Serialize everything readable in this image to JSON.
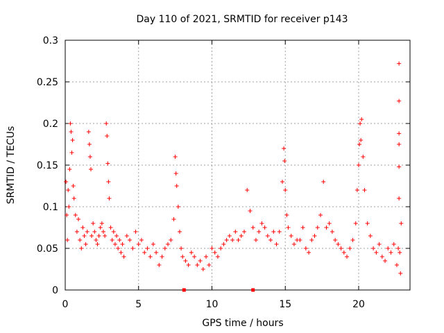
{
  "chart_data": {
    "type": "scatter",
    "title": "Day 110 of 2021, SRMTID for receiver p143",
    "xlabel": "GPS time / hours",
    "ylabel": "SRMTID / TECUs",
    "xlim": [
      0,
      23.5
    ],
    "ylim": [
      0,
      0.3
    ],
    "xticks": [
      0,
      5,
      10,
      15,
      20
    ],
    "xtick_labels": [
      "0",
      "5",
      "10",
      "15",
      "20"
    ],
    "yticks": [
      0,
      0.05,
      0.1,
      0.15,
      0.2,
      0.25,
      0.3
    ],
    "ytick_labels": [
      "0",
      "0.05",
      "0.1",
      "0.15",
      "0.2",
      "0.25",
      "0.3"
    ],
    "grid": true,
    "marker": "+",
    "color": "#ff0000",
    "series": [
      {
        "name": "SRMTID",
        "points": [
          [
            0.05,
            0.13
          ],
          [
            0.1,
            0.09
          ],
          [
            0.15,
            0.06
          ],
          [
            0.2,
            0.12
          ],
          [
            0.25,
            0.1
          ],
          [
            0.3,
            0.145
          ],
          [
            0.35,
            0.2
          ],
          [
            0.4,
            0.19
          ],
          [
            0.45,
            0.165
          ],
          [
            0.5,
            0.18
          ],
          [
            0.55,
            0.125
          ],
          [
            0.6,
            0.11
          ],
          [
            0.7,
            0.09
          ],
          [
            0.8,
            0.07
          ],
          [
            0.9,
            0.085
          ],
          [
            1.0,
            0.06
          ],
          [
            1.1,
            0.05
          ],
          [
            1.2,
            0.075
          ],
          [
            1.3,
            0.065
          ],
          [
            1.4,
            0.055
          ],
          [
            1.5,
            0.07
          ],
          [
            1.6,
            0.19
          ],
          [
            1.65,
            0.175
          ],
          [
            1.7,
            0.16
          ],
          [
            1.75,
            0.145
          ],
          [
            1.8,
            0.065
          ],
          [
            1.9,
            0.08
          ],
          [
            2.0,
            0.07
          ],
          [
            2.1,
            0.06
          ],
          [
            2.2,
            0.055
          ],
          [
            2.3,
            0.065
          ],
          [
            2.4,
            0.075
          ],
          [
            2.5,
            0.08
          ],
          [
            2.6,
            0.07
          ],
          [
            2.7,
            0.065
          ],
          [
            2.8,
            0.2
          ],
          [
            2.85,
            0.185
          ],
          [
            2.9,
            0.152
          ],
          [
            2.95,
            0.13
          ],
          [
            3.0,
            0.11
          ],
          [
            3.1,
            0.075
          ],
          [
            3.2,
            0.06
          ],
          [
            3.3,
            0.07
          ],
          [
            3.4,
            0.055
          ],
          [
            3.5,
            0.065
          ],
          [
            3.6,
            0.05
          ],
          [
            3.7,
            0.06
          ],
          [
            3.8,
            0.045
          ],
          [
            3.9,
            0.055
          ],
          [
            4.0,
            0.04
          ],
          [
            4.2,
            0.065
          ],
          [
            4.4,
            0.06
          ],
          [
            4.6,
            0.05
          ],
          [
            4.8,
            0.07
          ],
          [
            5.0,
            0.055
          ],
          [
            5.2,
            0.06
          ],
          [
            5.4,
            0.045
          ],
          [
            5.6,
            0.05
          ],
          [
            5.8,
            0.04
          ],
          [
            6.0,
            0.055
          ],
          [
            6.2,
            0.045
          ],
          [
            6.4,
            0.03
          ],
          [
            6.6,
            0.04
          ],
          [
            6.8,
            0.05
          ],
          [
            7.0,
            0.055
          ],
          [
            7.2,
            0.06
          ],
          [
            7.4,
            0.085
          ],
          [
            7.5,
            0.16
          ],
          [
            7.55,
            0.14
          ],
          [
            7.6,
            0.125
          ],
          [
            7.7,
            0.1
          ],
          [
            7.8,
            0.07
          ],
          [
            7.9,
            0.05
          ],
          [
            8.0,
            0.04
          ],
          [
            8.2,
            0.035
          ],
          [
            8.4,
            0.03
          ],
          [
            8.6,
            0.045
          ],
          [
            8.8,
            0.04
          ],
          [
            9.0,
            0.03
          ],
          [
            9.2,
            0.035
          ],
          [
            9.4,
            0.025
          ],
          [
            9.6,
            0.04
          ],
          [
            9.8,
            0.03
          ],
          [
            10.0,
            0.05
          ],
          [
            10.2,
            0.045
          ],
          [
            10.4,
            0.04
          ],
          [
            10.6,
            0.05
          ],
          [
            10.8,
            0.055
          ],
          [
            11.0,
            0.06
          ],
          [
            11.2,
            0.065
          ],
          [
            11.4,
            0.06
          ],
          [
            11.6,
            0.07
          ],
          [
            11.8,
            0.06
          ],
          [
            12.0,
            0.065
          ],
          [
            12.2,
            0.07
          ],
          [
            12.4,
            0.12
          ],
          [
            12.6,
            0.095
          ],
          [
            12.8,
            0.075
          ],
          [
            13.0,
            0.06
          ],
          [
            13.2,
            0.07
          ],
          [
            13.4,
            0.08
          ],
          [
            13.6,
            0.075
          ],
          [
            13.8,
            0.065
          ],
          [
            14.0,
            0.06
          ],
          [
            14.2,
            0.07
          ],
          [
            14.4,
            0.055
          ],
          [
            14.6,
            0.07
          ],
          [
            14.8,
            0.13
          ],
          [
            14.9,
            0.17
          ],
          [
            14.95,
            0.155
          ],
          [
            15.0,
            0.12
          ],
          [
            15.1,
            0.09
          ],
          [
            15.2,
            0.075
          ],
          [
            15.4,
            0.065
          ],
          [
            15.6,
            0.055
          ],
          [
            15.8,
            0.06
          ],
          [
            16.0,
            0.06
          ],
          [
            16.2,
            0.075
          ],
          [
            16.4,
            0.05
          ],
          [
            16.6,
            0.045
          ],
          [
            16.8,
            0.06
          ],
          [
            17.0,
            0.065
          ],
          [
            17.2,
            0.075
          ],
          [
            17.4,
            0.09
          ],
          [
            17.6,
            0.13
          ],
          [
            17.8,
            0.075
          ],
          [
            18.0,
            0.08
          ],
          [
            18.2,
            0.07
          ],
          [
            18.4,
            0.06
          ],
          [
            18.6,
            0.055
          ],
          [
            18.8,
            0.05
          ],
          [
            19.0,
            0.045
          ],
          [
            19.2,
            0.04
          ],
          [
            19.4,
            0.05
          ],
          [
            19.6,
            0.06
          ],
          [
            19.8,
            0.08
          ],
          [
            19.9,
            0.12
          ],
          [
            20.0,
            0.15
          ],
          [
            20.05,
            0.175
          ],
          [
            20.1,
            0.2
          ],
          [
            20.15,
            0.18
          ],
          [
            20.2,
            0.205
          ],
          [
            20.3,
            0.16
          ],
          [
            20.4,
            0.12
          ],
          [
            20.6,
            0.08
          ],
          [
            20.8,
            0.065
          ],
          [
            21.0,
            0.05
          ],
          [
            21.2,
            0.045
          ],
          [
            21.4,
            0.055
          ],
          [
            21.6,
            0.04
          ],
          [
            21.8,
            0.035
          ],
          [
            22.0,
            0.05
          ],
          [
            22.2,
            0.045
          ],
          [
            22.4,
            0.055
          ],
          [
            22.6,
            0.03
          ],
          [
            22.7,
            0.05
          ],
          [
            22.75,
            0.272
          ],
          [
            22.75,
            0.227
          ],
          [
            22.75,
            0.188
          ],
          [
            22.75,
            0.175
          ],
          [
            22.75,
            0.148
          ],
          [
            22.75,
            0.11
          ],
          [
            22.8,
            0.045
          ],
          [
            22.85,
            0.02
          ],
          [
            22.9,
            0.08
          ]
        ]
      }
    ],
    "bottom_markers_x": [
      8.1,
      12.8
    ]
  }
}
